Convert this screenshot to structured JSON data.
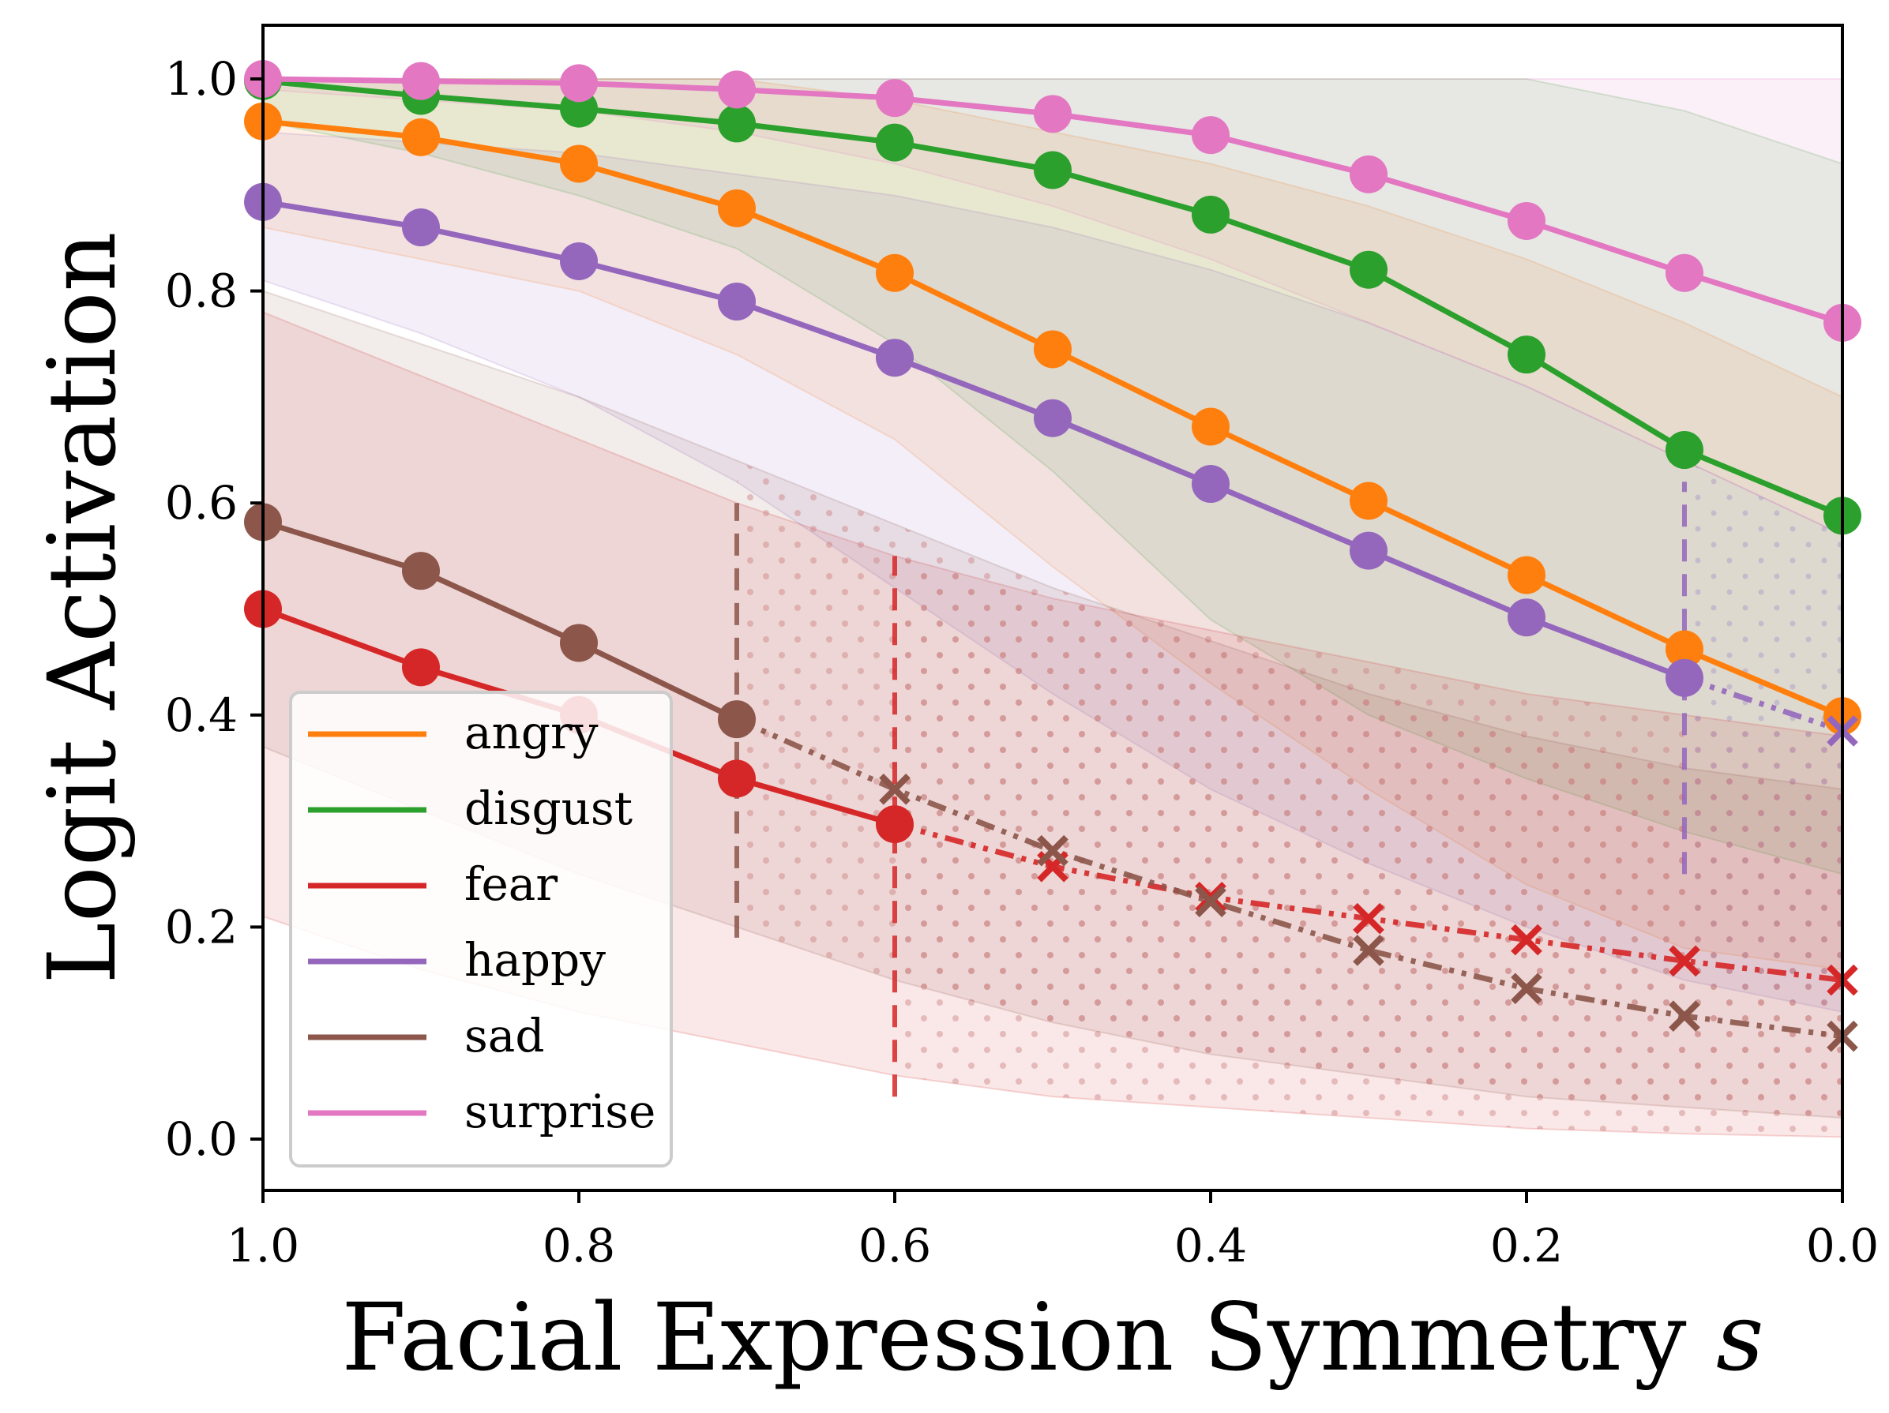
{
  "chart_data": {
    "type": "line",
    "xlabel": "Facial Expression Symmetry s",
    "ylabel": "Logit Activation",
    "xlim": [
      1.0,
      0.0
    ],
    "ylim": [
      -0.05,
      1.05
    ],
    "x_reversed": true,
    "x_ticks": [
      "1.0",
      "0.8",
      "0.6",
      "0.4",
      "0.2",
      "0.0"
    ],
    "y_ticks": [
      "0.0",
      "0.2",
      "0.4",
      "0.6",
      "0.8",
      "1.0"
    ],
    "grid": false,
    "legend_position": "lower-left",
    "x": [
      1.0,
      0.9,
      0.8,
      0.7,
      0.6,
      0.5,
      0.4,
      0.3,
      0.2,
      0.1,
      0.0
    ],
    "series": [
      {
        "name": "angry",
        "color": "#ff7f0e",
        "values": [
          0.96,
          0.945,
          0.92,
          0.878,
          0.817,
          0.745,
          0.672,
          0.602,
          0.532,
          0.462,
          0.399
        ],
        "band_lower": [
          0.86,
          0.83,
          0.8,
          0.74,
          0.66,
          0.54,
          0.43,
          0.33,
          0.24,
          0.18,
          0.16
        ],
        "band_upper": [
          1.0,
          1.0,
          1.0,
          1.0,
          0.98,
          0.95,
          0.92,
          0.88,
          0.83,
          0.77,
          0.7
        ],
        "threshold_x": null
      },
      {
        "name": "disgust",
        "color": "#2ca02c",
        "values": [
          0.998,
          0.984,
          0.972,
          0.958,
          0.94,
          0.914,
          0.872,
          0.82,
          0.74,
          0.65,
          0.588
        ],
        "band_lower": [
          0.96,
          0.93,
          0.89,
          0.84,
          0.75,
          0.63,
          0.49,
          0.4,
          0.34,
          0.29,
          0.25
        ],
        "band_upper": [
          1.0,
          1.0,
          1.0,
          1.0,
          1.0,
          1.0,
          1.0,
          1.0,
          1.0,
          0.97,
          0.92
        ],
        "threshold_x": null
      },
      {
        "name": "fear",
        "color": "#d62728",
        "values": [
          0.5,
          0.445,
          0.4,
          0.34,
          0.297,
          0.257,
          0.228,
          0.208,
          0.188,
          0.168,
          0.15
        ],
        "band_lower": [
          0.21,
          0.16,
          0.12,
          0.09,
          0.06,
          0.04,
          0.03,
          0.02,
          0.01,
          0.005,
          0.002
        ],
        "band_upper": [
          0.78,
          0.72,
          0.66,
          0.6,
          0.55,
          0.51,
          0.48,
          0.45,
          0.42,
          0.4,
          0.38
        ],
        "threshold_x": 0.6,
        "threshold_range": [
          0.04,
          0.55
        ],
        "solid_until_index": 4
      },
      {
        "name": "happy",
        "color": "#9467bd",
        "values": [
          0.884,
          0.86,
          0.828,
          0.79,
          0.737,
          0.68,
          0.618,
          0.555,
          0.492,
          0.435,
          0.385
        ],
        "band_lower": [
          0.81,
          0.76,
          0.7,
          0.62,
          0.52,
          0.42,
          0.33,
          0.26,
          0.2,
          0.15,
          0.12
        ],
        "band_upper": [
          0.95,
          0.94,
          0.93,
          0.91,
          0.89,
          0.86,
          0.82,
          0.77,
          0.71,
          0.64,
          0.57
        ],
        "threshold_x": 0.1,
        "threshold_range": [
          0.25,
          0.62
        ],
        "solid_until_index": 9
      },
      {
        "name": "sad",
        "color": "#8c564b",
        "values": [
          0.582,
          0.536,
          0.468,
          0.396,
          0.33,
          0.272,
          0.224,
          0.178,
          0.142,
          0.116,
          0.097
        ],
        "band_lower": [
          0.37,
          0.31,
          0.25,
          0.2,
          0.15,
          0.11,
          0.08,
          0.06,
          0.04,
          0.03,
          0.02
        ],
        "band_upper": [
          0.8,
          0.75,
          0.7,
          0.64,
          0.58,
          0.52,
          0.47,
          0.42,
          0.38,
          0.35,
          0.33
        ],
        "threshold_x": 0.7,
        "threshold_range": [
          0.19,
          0.6
        ],
        "solid_until_index": 3
      },
      {
        "name": "surprise",
        "color": "#e377c2",
        "values": [
          1.0,
          0.998,
          0.996,
          0.99,
          0.982,
          0.967,
          0.947,
          0.91,
          0.866,
          0.817,
          0.77
        ],
        "band_lower": [
          0.99,
          0.98,
          0.97,
          0.95,
          0.92,
          0.88,
          0.83,
          0.77,
          0.71,
          0.64,
          0.57
        ],
        "band_upper": [
          1.0,
          1.0,
          1.0,
          1.0,
          1.0,
          1.0,
          1.0,
          1.0,
          1.0,
          1.0,
          1.0
        ],
        "threshold_x": null
      }
    ]
  }
}
